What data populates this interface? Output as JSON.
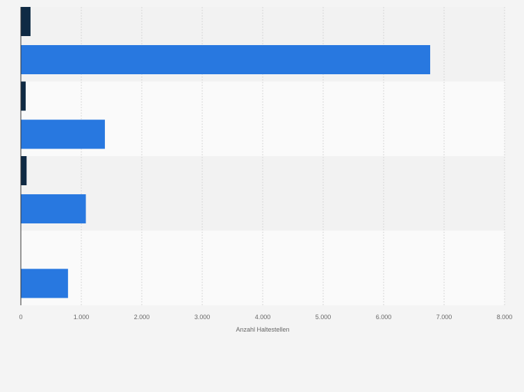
{
  "chart_data": {
    "type": "bar",
    "orientation": "horizontal",
    "categories": [
      "",
      "",
      "",
      ""
    ],
    "series": [
      {
        "color": "#0f2a44",
        "values": [
          160,
          80,
          95,
          0
        ]
      },
      {
        "color": "#2878e0",
        "values": [
          6770,
          1390,
          1075,
          780
        ]
      }
    ],
    "xlabel": "Anzahl Haltestellen",
    "xlim": [
      0,
      8000
    ],
    "ticks": [
      0,
      1000,
      2000,
      3000,
      4000,
      5000,
      6000,
      7000,
      8000
    ],
    "tick_labels": [
      "0",
      "1.000",
      "2.000",
      "3.000",
      "4.000",
      "5.000",
      "6.000",
      "7.000",
      "8.000"
    ],
    "grid": true,
    "legend": "none"
  }
}
